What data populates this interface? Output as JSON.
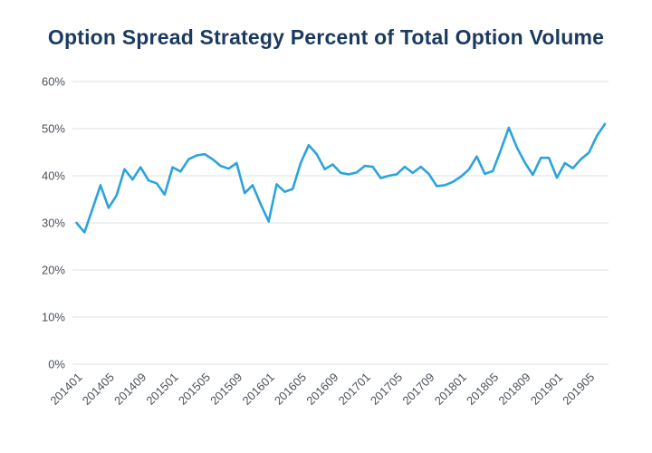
{
  "colors": {
    "line": "#2ba3dc",
    "title": "#1b3a5f",
    "tick_label": "#4b525a",
    "gridline": "#dde1e5",
    "background": "#ffffff"
  },
  "chart_data": {
    "type": "line",
    "title": "Option Spread Strategy Percent of Total Option Volume",
    "xlabel": "",
    "ylabel": "",
    "legend": "none",
    "grid": "horizontal",
    "ylim": [
      0,
      60
    ],
    "yticks": [
      0,
      10,
      20,
      30,
      40,
      50,
      60
    ],
    "ytick_labels": [
      "0%",
      "10%",
      "20%",
      "30%",
      "40%",
      "50%",
      "60%"
    ],
    "xtick_every": 4,
    "xtick_labels": [
      "201401",
      "201405",
      "201409",
      "201501",
      "201505",
      "201509",
      "201601",
      "201605",
      "201609",
      "201701",
      "201705",
      "201709",
      "201801",
      "201805",
      "201809",
      "201901",
      "201905"
    ],
    "x": [
      "201401",
      "201402",
      "201403",
      "201404",
      "201405",
      "201406",
      "201407",
      "201408",
      "201409",
      "201410",
      "201411",
      "201412",
      "201501",
      "201502",
      "201503",
      "201504",
      "201505",
      "201506",
      "201507",
      "201508",
      "201509",
      "201510",
      "201511",
      "201512",
      "201601",
      "201602",
      "201603",
      "201604",
      "201605",
      "201606",
      "201607",
      "201608",
      "201609",
      "201610",
      "201611",
      "201612",
      "201701",
      "201702",
      "201703",
      "201704",
      "201705",
      "201706",
      "201707",
      "201708",
      "201709",
      "201710",
      "201711",
      "201712",
      "201801",
      "201802",
      "201803",
      "201804",
      "201805",
      "201806",
      "201807",
      "201808",
      "201809",
      "201810",
      "201811",
      "201812",
      "201901",
      "201902",
      "201903",
      "201904",
      "201905",
      "201906",
      "201907"
    ],
    "values": [
      30.0,
      28.0,
      33.0,
      38.0,
      33.2,
      35.8,
      41.4,
      39.2,
      41.8,
      39.0,
      38.4,
      36.0,
      41.8,
      40.9,
      43.5,
      44.3,
      44.6,
      43.5,
      42.1,
      41.5,
      42.7,
      36.3,
      38.0,
      34.0,
      30.3,
      38.2,
      36.6,
      37.2,
      42.7,
      46.5,
      44.6,
      41.4,
      42.4,
      40.6,
      40.3,
      40.7,
      42.1,
      41.9,
      39.5,
      40.0,
      40.3,
      41.9,
      40.6,
      41.9,
      40.4,
      37.8,
      38.0,
      38.7,
      39.8,
      41.3,
      44.1,
      40.4,
      41.0,
      45.5,
      50.2,
      46.0,
      42.8,
      40.2,
      43.8,
      43.8,
      39.6,
      42.7,
      41.6,
      43.5,
      44.9,
      48.5,
      51.0
    ]
  }
}
